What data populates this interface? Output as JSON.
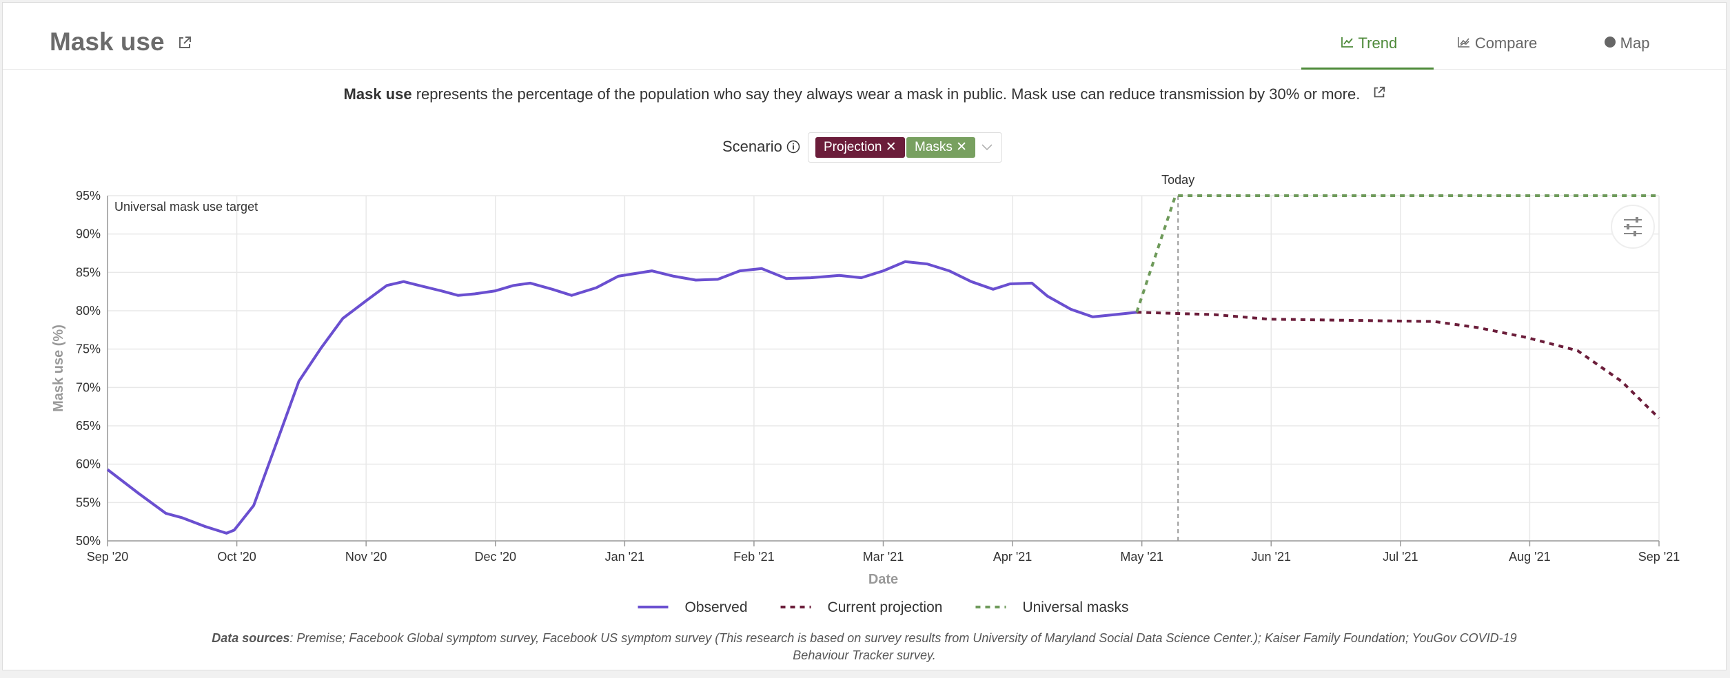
{
  "header": {
    "title": "Mask use",
    "tabs": [
      "Trend",
      "Compare",
      "Map"
    ]
  },
  "description": {
    "bold": "Mask use",
    "text": "represents the percentage of the population who say they always wear a mask in public. Mask use can reduce transmission by 30% or more."
  },
  "scenario": {
    "label": "Scenario",
    "chips": [
      "Projection",
      "Masks"
    ]
  },
  "chart_data": {
    "type": "line",
    "xlabel": "Date",
    "ylabel": "Mask use (%)",
    "xlim": [
      0,
      12
    ],
    "xticks": [
      {
        "value": 0,
        "label": "Sep '20"
      },
      {
        "value": 1,
        "label": "Oct '20"
      },
      {
        "value": 2,
        "label": "Nov '20"
      },
      {
        "value": 3,
        "label": "Dec '20"
      },
      {
        "value": 4,
        "label": "Jan '21"
      },
      {
        "value": 5,
        "label": "Feb '21"
      },
      {
        "value": 6,
        "label": "Mar '21"
      },
      {
        "value": 7,
        "label": "Apr '21"
      },
      {
        "value": 8,
        "label": "May '21"
      },
      {
        "value": 9,
        "label": "Jun '21"
      },
      {
        "value": 10,
        "label": "Jul '21"
      },
      {
        "value": 11,
        "label": "Aug '21"
      },
      {
        "value": 12,
        "label": "Sep '21"
      }
    ],
    "ylim": [
      50,
      95
    ],
    "yticks": [
      {
        "value": 50,
        "label": "50%"
      },
      {
        "value": 55,
        "label": "55%"
      },
      {
        "value": 60,
        "label": "60%"
      },
      {
        "value": 65,
        "label": "65%"
      },
      {
        "value": 70,
        "label": "70%"
      },
      {
        "value": 75,
        "label": "75%"
      },
      {
        "value": 80,
        "label": "80%"
      },
      {
        "value": 85,
        "label": "85%"
      },
      {
        "value": 90,
        "label": "90%"
      },
      {
        "value": 95,
        "label": "95%"
      }
    ],
    "grid": true,
    "annotations": [
      {
        "text": "Today",
        "x": 8.28
      },
      {
        "text": "Universal mask use target"
      }
    ],
    "series": [
      {
        "name": "Observed",
        "color": "#6a4fd0",
        "dash": false,
        "x": [
          0,
          0.24,
          0.45,
          0.58,
          0.75,
          0.92,
          0.98,
          1.13,
          1.31,
          1.48,
          1.65,
          1.82,
          2.0,
          2.16,
          2.29,
          2.41,
          2.58,
          2.71,
          2.84,
          3.0,
          3.14,
          3.27,
          3.44,
          3.59,
          3.78,
          3.95,
          4.21,
          4.38,
          4.55,
          4.72,
          4.89,
          5.06,
          5.25,
          5.44,
          5.66,
          5.83,
          6.0,
          6.17,
          6.34,
          6.51,
          6.68,
          6.85,
          6.98,
          7.15,
          7.27,
          7.45,
          7.62,
          7.79,
          7.96
        ],
        "values": [
          59.3,
          56.2,
          53.6,
          53,
          51.9,
          51,
          51.4,
          54.6,
          62.9,
          70.8,
          75.1,
          79,
          81.3,
          83.3,
          83.8,
          83.3,
          82.6,
          82,
          82.2,
          82.6,
          83.3,
          83.6,
          82.8,
          82,
          83,
          84.5,
          85.2,
          84.5,
          84,
          84.1,
          85.2,
          85.5,
          84.2,
          84.3,
          84.6,
          84.3,
          85.2,
          86.4,
          86.1,
          85.2,
          83.8,
          82.8,
          83.5,
          83.6,
          81.9,
          80.2,
          79.2,
          79.5,
          79.8
        ]
      },
      {
        "name": "Current projection",
        "color": "#6b1d3a",
        "dash": true,
        "x": [
          7.96,
          8.56,
          8.98,
          9.41,
          10.26,
          10.6,
          10.98,
          11.37,
          11.71,
          12.0
        ],
        "values": [
          79.8,
          79.5,
          78.9,
          78.8,
          78.6,
          77.8,
          76.5,
          74.8,
          70.8,
          66
        ]
      },
      {
        "name": "Universal masks",
        "color": "#6e9a5a",
        "dash": true,
        "x": [
          7.96,
          8.26,
          12.0
        ],
        "values": [
          79.8,
          95,
          95
        ]
      }
    ]
  },
  "sources": {
    "label": "Data sources",
    "text": ": Premise; Facebook Global symptom survey, Facebook US symptom survey (This research is based on survey results from University of Maryland Social Data Science Center.); Kaiser Family Foundation; YouGov COVID-19 Behaviour Tracker survey."
  }
}
